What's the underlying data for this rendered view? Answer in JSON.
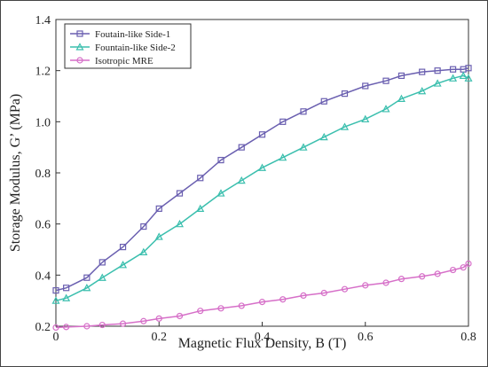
{
  "chart_data": {
    "type": "line",
    "xlabel": "Magnetic Flux Density, B (T)",
    "ylabel": "Storage Modulus, G’ (MPa)",
    "xlim": [
      0,
      0.8
    ],
    "ylim": [
      0.2,
      1.4
    ],
    "xticks": [
      0,
      0.2,
      0.4,
      0.6,
      0.8
    ],
    "xtick_labels": [
      "0",
      "0.2",
      "0.4",
      "0.6",
      "0.8"
    ],
    "yticks": [
      0.2,
      0.4,
      0.6,
      0.8,
      1.0,
      1.2,
      1.4
    ],
    "ytick_labels": [
      "0.2",
      "0.4",
      "0.6",
      "0.8",
      "1.0",
      "1.2",
      "1.4"
    ],
    "grid": false,
    "legend_position": "top-left",
    "series": [
      {
        "name": "Foutain-like Side-1",
        "color": "#6a5fb0",
        "marker": "square",
        "x": [
          0.0,
          0.02,
          0.06,
          0.09,
          0.13,
          0.17,
          0.2,
          0.24,
          0.28,
          0.32,
          0.36,
          0.4,
          0.44,
          0.48,
          0.52,
          0.56,
          0.6,
          0.64,
          0.67,
          0.71,
          0.74,
          0.77,
          0.79,
          0.8
        ],
        "y": [
          0.34,
          0.35,
          0.39,
          0.45,
          0.51,
          0.59,
          0.66,
          0.72,
          0.78,
          0.85,
          0.9,
          0.95,
          1.0,
          1.04,
          1.08,
          1.11,
          1.14,
          1.16,
          1.18,
          1.195,
          1.2,
          1.205,
          1.205,
          1.21
        ]
      },
      {
        "name": "Fountain-like Side-2",
        "color": "#3bbfae",
        "marker": "triangle",
        "x": [
          0.0,
          0.02,
          0.06,
          0.09,
          0.13,
          0.17,
          0.2,
          0.24,
          0.28,
          0.32,
          0.36,
          0.4,
          0.44,
          0.48,
          0.52,
          0.56,
          0.6,
          0.64,
          0.67,
          0.71,
          0.74,
          0.77,
          0.79,
          0.8
        ],
        "y": [
          0.3,
          0.31,
          0.35,
          0.39,
          0.44,
          0.49,
          0.55,
          0.6,
          0.66,
          0.72,
          0.77,
          0.82,
          0.86,
          0.9,
          0.94,
          0.98,
          1.01,
          1.05,
          1.09,
          1.12,
          1.15,
          1.17,
          1.18,
          1.17
        ]
      },
      {
        "name": "Isotropic MRE",
        "color": "#d66fc8",
        "marker": "circle",
        "x": [
          0.0,
          0.02,
          0.06,
          0.09,
          0.13,
          0.17,
          0.2,
          0.24,
          0.28,
          0.32,
          0.36,
          0.4,
          0.44,
          0.48,
          0.52,
          0.56,
          0.6,
          0.64,
          0.67,
          0.71,
          0.74,
          0.77,
          0.79,
          0.8
        ],
        "y": [
          0.195,
          0.197,
          0.2,
          0.205,
          0.21,
          0.22,
          0.23,
          0.24,
          0.26,
          0.27,
          0.28,
          0.295,
          0.305,
          0.32,
          0.33,
          0.345,
          0.36,
          0.37,
          0.385,
          0.395,
          0.405,
          0.42,
          0.43,
          0.445
        ]
      }
    ]
  }
}
